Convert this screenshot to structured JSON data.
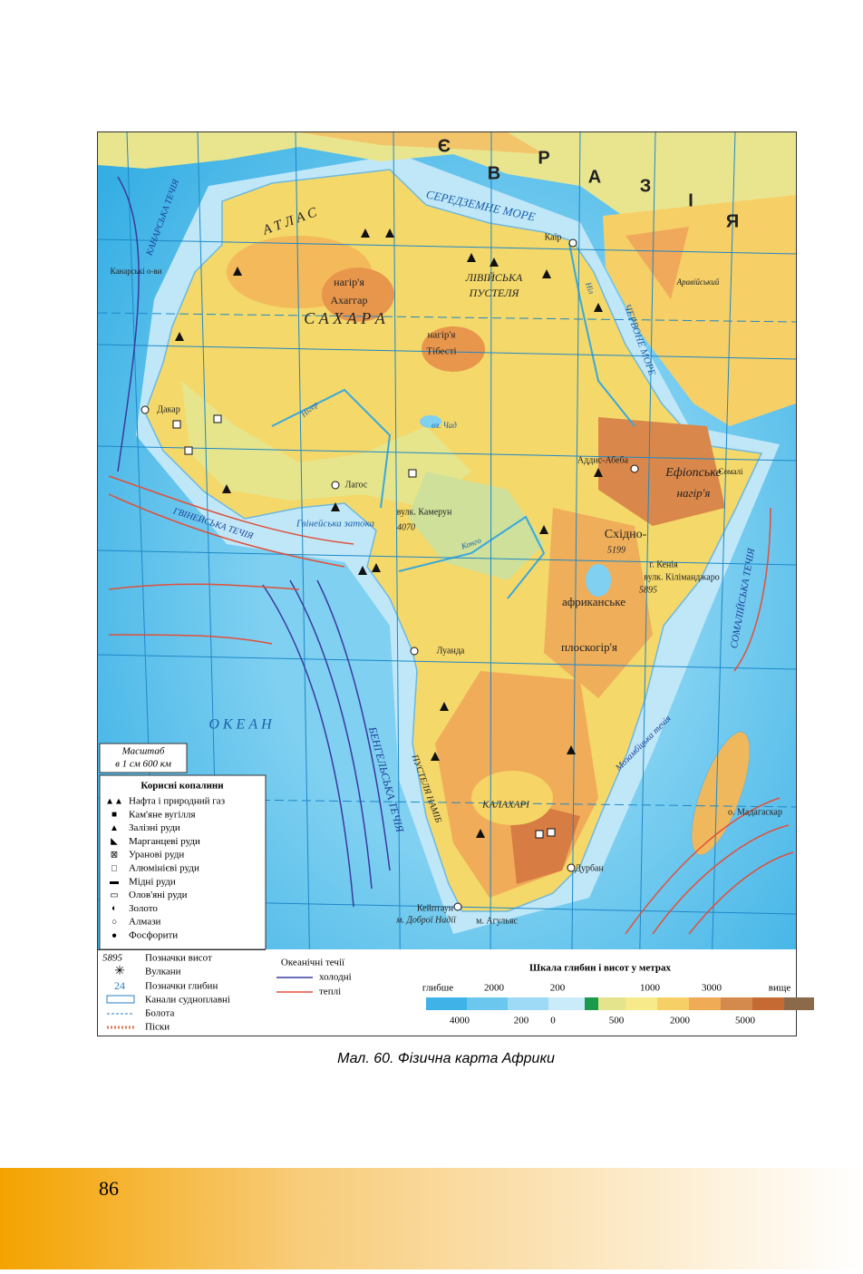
{
  "map": {
    "labels": [
      "Є",
      "В",
      "Р",
      "А",
      "З",
      "І",
      "Я",
      "СЕРЕДЗЕМНЕ МОРЕ",
      "А Т Л А С",
      "С А Х А Р А",
      "нагір'я",
      "Ахаггар",
      "ЛІВІЙСЬКА",
      "ПУСТЕЛЯ",
      "нагір'я",
      "Тібесті",
      "Каїр",
      "Аравійський",
      "ЧЕРВОНЕ МОРЕ",
      "Дакар",
      "Лагос",
      "Гвінейська затока",
      "вулк. Камерун",
      "4070",
      "Аддис-Абеба",
      "Ефіопське",
      "нагір'я",
      "Сомалі",
      "Східно-",
      "африканське",
      "плоскогір'я",
      "5199",
      "г. Кенія",
      "вулк. Кіліманджаро",
      "5895",
      "Луанда",
      "КАЛАХАРІ",
      "ПУСТЕЛЯ НАМІБ",
      "Дурбан",
      "Кейптаун",
      "м. Доброї Надії",
      "м. Агульяс",
      "о. Мадагаскар",
      "БЕНГЕЛЬСЬКА ТЕЧІЯ",
      "СОМАЛІЙСЬКА ТЕЧІЯ",
      "ГВІНЕЙСЬКА ТЕЧІЯ",
      "КАНАРСЬКА ТЕЧІЯ",
      "О К Е А Н",
      "Канарські о-ви",
      "Мозамбіцька течія",
      "Ніл",
      "Конго",
      "Нігер",
      "оз. Чад"
    ],
    "scale": {
      "title": "Масштаб",
      "text": "в 1 см 600 км"
    },
    "minerals": {
      "title": "Корисні копалини",
      "items": [
        "Нафта і природний газ",
        "Кам'яне вугілля",
        "Залізні руди",
        "Марганцеві руди",
        "Уранові руди",
        "Алюмінієві руди",
        "Мідні руди",
        "Олов'яні руди",
        "Золото",
        "Алмази",
        "Фосфорити"
      ]
    },
    "symbols": {
      "height_mark": "5895",
      "height": "Позначки висот",
      "volcano": "Вулкани",
      "depth_mark": "24",
      "depth": "Позначки глибин",
      "canals": "Канали судноплавні",
      "swamps": "Болота",
      "sands": "Піски"
    },
    "currents": {
      "title": "Океанічні течії",
      "cold": "холодні",
      "warm": "теплі"
    },
    "depth_scale": {
      "title": "Шкала глибин і висот у метрах",
      "top": [
        "глибше",
        "2000",
        "200",
        "1000",
        "3000",
        "вище"
      ],
      "bottom": [
        "4000",
        "200",
        "0",
        "500",
        "2000",
        "5000"
      ]
    }
  },
  "caption": "Мал. 60. Фізична карта Африки",
  "page_number": "86"
}
